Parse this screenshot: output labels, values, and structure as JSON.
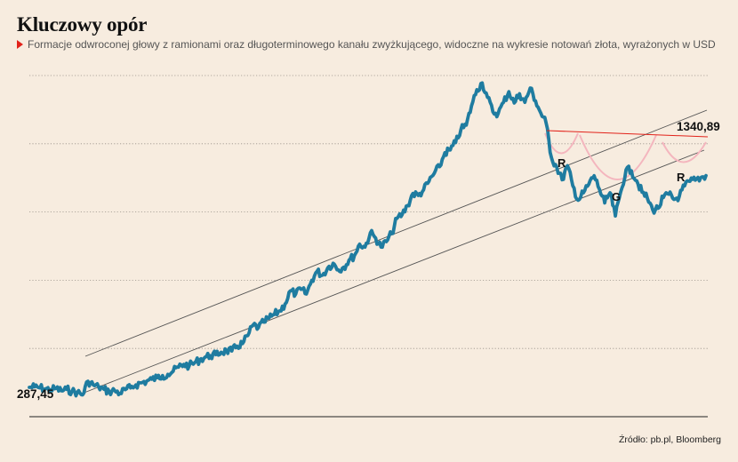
{
  "title": "Kluczowy opór",
  "subtitle": "Formacje odwroconej głowy z ramionami oraz długoterminowego kanału zwyżkującego, widoczne na wykresie notowań złota, wyrażonych w USD",
  "source": "Źródło: pb.pl, Bloomberg",
  "colors": {
    "background": "#f7ecdf",
    "series": "#1f7ca0",
    "channel": "#555555",
    "neckline": "#e2221a",
    "pattern_arcs": "#f4b6be",
    "marker": "#e2221a"
  },
  "chart_data": {
    "type": "line",
    "title": "Kluczowy opór",
    "xlabel": "",
    "ylabel": "",
    "grid": true,
    "gridlines": 5,
    "series": [
      {
        "values": [
          287.45,
          290,
          285,
          280,
          275,
          282,
          270,
          278,
          268,
          262,
          250,
          318,
          300,
          289,
          278,
          265,
          272,
          258,
          276,
          285,
          300,
          310,
          318,
          328,
          335,
          346,
          352,
          368,
          388,
          402,
          395,
          410,
          425,
          438,
          445,
          450,
          462,
          470,
          468,
          492,
          505,
          545,
          598,
          585,
          612,
          632,
          650,
          668,
          702,
          768,
          752,
          775,
          752,
          820,
          865,
          845,
          882,
          905,
          872,
          885,
          920,
          942,
          1000,
          985,
          1056,
          1030,
          985,
          1012,
          1052,
          1128,
          1148,
          1192,
          1252,
          1242,
          1270,
          1312,
          1352,
          1385,
          1455,
          1468,
          1505,
          1570,
          1592,
          1688,
          1768,
          1802,
          1730,
          1658,
          1650,
          1705,
          1758,
          1702,
          1748,
          1705,
          1776,
          1712,
          1652,
          1602,
          1430,
          1382,
          1320,
          1390,
          1290,
          1218,
          1255,
          1298,
          1340,
          1272,
          1205,
          1255,
          1140,
          1260,
          1370,
          1365,
          1315,
          1258,
          1228,
          1170,
          1178,
          1232,
          1248,
          1222,
          1238,
          1290,
          1312,
          1318,
          1330,
          1340.89
        ]
      }
    ],
    "labels": {
      "start": "287,45",
      "end": "1340,89",
      "shoulder_left": "R",
      "head": "G",
      "shoulder_right": "R"
    }
  }
}
